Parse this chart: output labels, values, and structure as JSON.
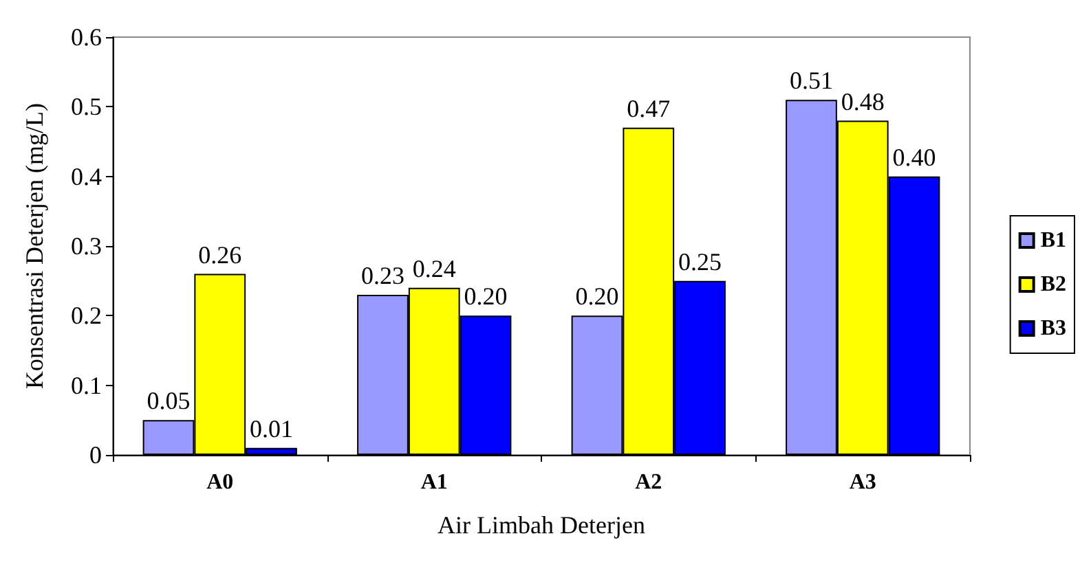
{
  "chart_data": {
    "type": "bar",
    "xlabel": "Air Limbah Deterjen",
    "ylabel": "Konsentrasi Deterjen (mg/L)",
    "categories": [
      "A0",
      "A1",
      "A2",
      "A3"
    ],
    "series": [
      {
        "name": "B1",
        "color": "#9999ff",
        "values": [
          0.05,
          0.23,
          0.2,
          0.51
        ],
        "value_labels": [
          "0.05",
          "0.23",
          "0.20",
          "0.51"
        ]
      },
      {
        "name": "B2",
        "color": "#ffff00",
        "values": [
          0.26,
          0.24,
          0.47,
          0.48
        ],
        "value_labels": [
          "0.26",
          "0.24",
          "0.47",
          "0.48"
        ]
      },
      {
        "name": "B3",
        "color": "#0000ff",
        "values": [
          0.01,
          0.2,
          0.25,
          0.4
        ],
        "value_labels": [
          "0.01",
          "0.20",
          "0.25",
          "0.40"
        ]
      }
    ],
    "ylim": [
      0,
      0.6
    ],
    "yticks": [
      0,
      0.1,
      0.2,
      0.3,
      0.4,
      0.5,
      0.6
    ],
    "grid": false,
    "legend": "right"
  }
}
